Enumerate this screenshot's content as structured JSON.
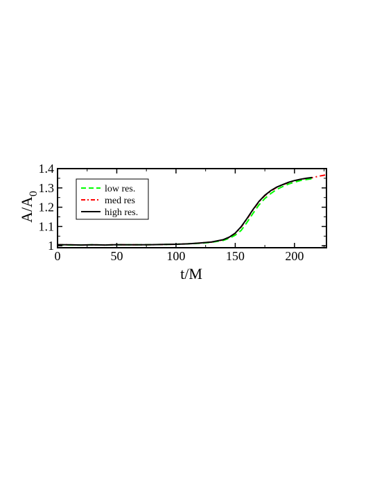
{
  "chart_data": {
    "type": "line",
    "title": "",
    "xlabel": "t/M",
    "ylabel": "A/A",
    "ylabel_subscript": "0",
    "xlim": [
      0,
      227
    ],
    "ylim": [
      0.99,
      1.4
    ],
    "xticks": [
      0,
      50,
      100,
      150,
      200
    ],
    "xtick_labels": [
      "0",
      "50",
      "100",
      "150",
      "200"
    ],
    "yticks": [
      1.0,
      1.1,
      1.2,
      1.3,
      1.4
    ],
    "ytick_labels": [
      "1",
      "1.1",
      "1.2",
      "1.3",
      "1.4"
    ],
    "grid": false,
    "legend_position": "top-left",
    "series": [
      {
        "name": "low res.",
        "color": "#00ff00",
        "style": "dashed",
        "x": [
          0,
          10,
          20,
          30,
          40,
          50,
          60,
          70,
          80,
          90,
          100,
          110,
          120,
          130,
          140,
          145,
          150,
          155,
          160,
          165,
          170,
          175,
          180,
          185,
          190,
          195,
          200,
          205,
          210,
          215
        ],
        "y": [
          1.005,
          1.004,
          1.004,
          1.005,
          1.004,
          1.005,
          1.005,
          1.005,
          1.006,
          1.007,
          1.008,
          1.01,
          1.013,
          1.018,
          1.028,
          1.039,
          1.055,
          1.08,
          1.122,
          1.168,
          1.212,
          1.245,
          1.271,
          1.292,
          1.307,
          1.32,
          1.33,
          1.338,
          1.343,
          1.348
        ]
      },
      {
        "name": "med res",
        "color": "#ff0000",
        "style": "dashdot",
        "x": [
          0,
          10,
          20,
          30,
          40,
          50,
          60,
          70,
          80,
          90,
          100,
          110,
          120,
          130,
          140,
          145,
          150,
          155,
          160,
          165,
          170,
          175,
          180,
          185,
          190,
          195,
          200,
          205,
          210,
          215,
          220,
          227
        ],
        "y": [
          1.006,
          1.005,
          1.004,
          1.005,
          1.004,
          1.006,
          1.005,
          1.005,
          1.006,
          1.007,
          1.008,
          1.01,
          1.014,
          1.019,
          1.031,
          1.043,
          1.064,
          1.097,
          1.14,
          1.186,
          1.228,
          1.26,
          1.284,
          1.303,
          1.316,
          1.328,
          1.337,
          1.344,
          1.349,
          1.353,
          1.36,
          1.368
        ]
      },
      {
        "name": "high res.",
        "color": "#000000",
        "style": "solid",
        "x": [
          0,
          10,
          20,
          30,
          40,
          50,
          60,
          70,
          80,
          90,
          100,
          110,
          120,
          130,
          140,
          145,
          150,
          155,
          160,
          165,
          170,
          175,
          180,
          185,
          190,
          195,
          200,
          205,
          210,
          215
        ],
        "y": [
          1.006,
          1.005,
          1.004,
          1.005,
          1.004,
          1.006,
          1.005,
          1.005,
          1.006,
          1.007,
          1.008,
          1.01,
          1.014,
          1.02,
          1.032,
          1.045,
          1.066,
          1.099,
          1.142,
          1.188,
          1.23,
          1.262,
          1.286,
          1.304,
          1.317,
          1.329,
          1.338,
          1.345,
          1.35,
          1.354
        ]
      }
    ]
  }
}
